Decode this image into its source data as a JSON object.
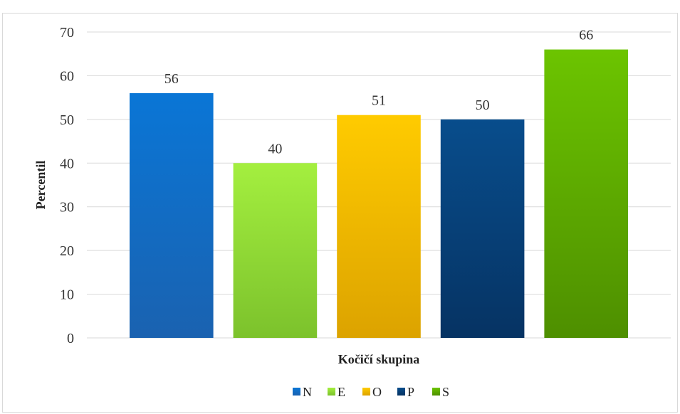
{
  "chart_data": {
    "type": "bar",
    "title": "",
    "xlabel": "Kočičí skupina",
    "ylabel": "Percentil",
    "ylim": [
      0,
      70
    ],
    "yticks": [
      0,
      10,
      20,
      30,
      40,
      50,
      60,
      70
    ],
    "grid": true,
    "legend_position": "bottom",
    "categories": [
      ""
    ],
    "series": [
      {
        "name": "N",
        "value": 56,
        "label": "56",
        "color": "#0a76d6",
        "color_dark": "#1a62b0"
      },
      {
        "name": "E",
        "value": 40,
        "label": "40",
        "color": "#a4ef3f",
        "color_dark": "#7cc22c"
      },
      {
        "name": "O",
        "value": 51,
        "label": "51",
        "color": "#ffcb00",
        "color_dark": "#dca300"
      },
      {
        "name": "P",
        "value": 50,
        "label": "50",
        "color": "#084d8c",
        "color_dark": "#063363"
      },
      {
        "name": "S",
        "value": 66,
        "label": "66",
        "color": "#6cc400",
        "color_dark": "#4e8f00"
      }
    ]
  }
}
